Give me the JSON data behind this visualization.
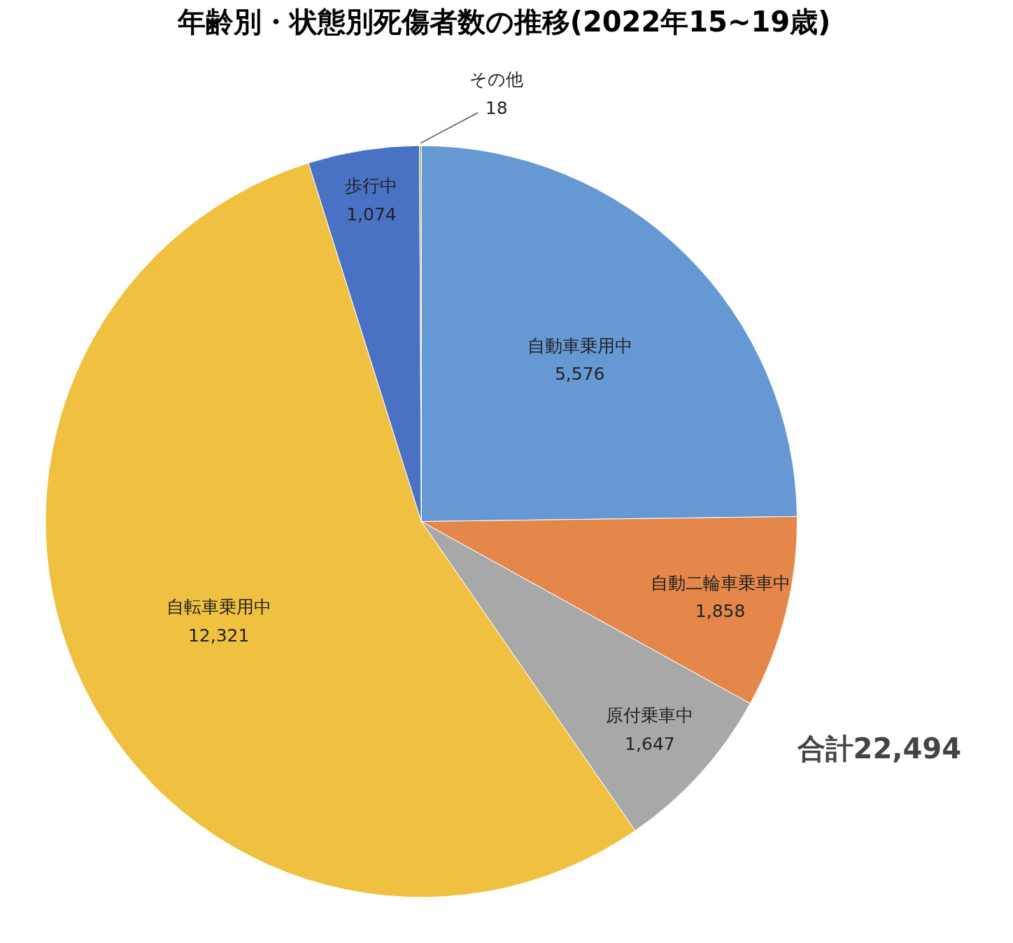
{
  "chart_data": {
    "type": "pie",
    "title": "年齢別・状態別死傷者数の推移(2022年15~19歳)",
    "categories": [
      "自動車乗用中",
      "自動二輪車乗車中",
      "原付乗車中",
      "自転車乗用中",
      "歩行中",
      "その他"
    ],
    "values": [
      5576,
      1858,
      1647,
      12321,
      1074,
      18
    ],
    "colors": [
      "#6699d3",
      "#e5874b",
      "#a8a8a8",
      "#f0c040",
      "#4a72c4",
      "#9bbb59"
    ],
    "value_labels": [
      "5,576",
      "1,858",
      "1,647",
      "12,321",
      "1,074",
      "18"
    ],
    "annotations": [
      "合計22,494"
    ]
  }
}
